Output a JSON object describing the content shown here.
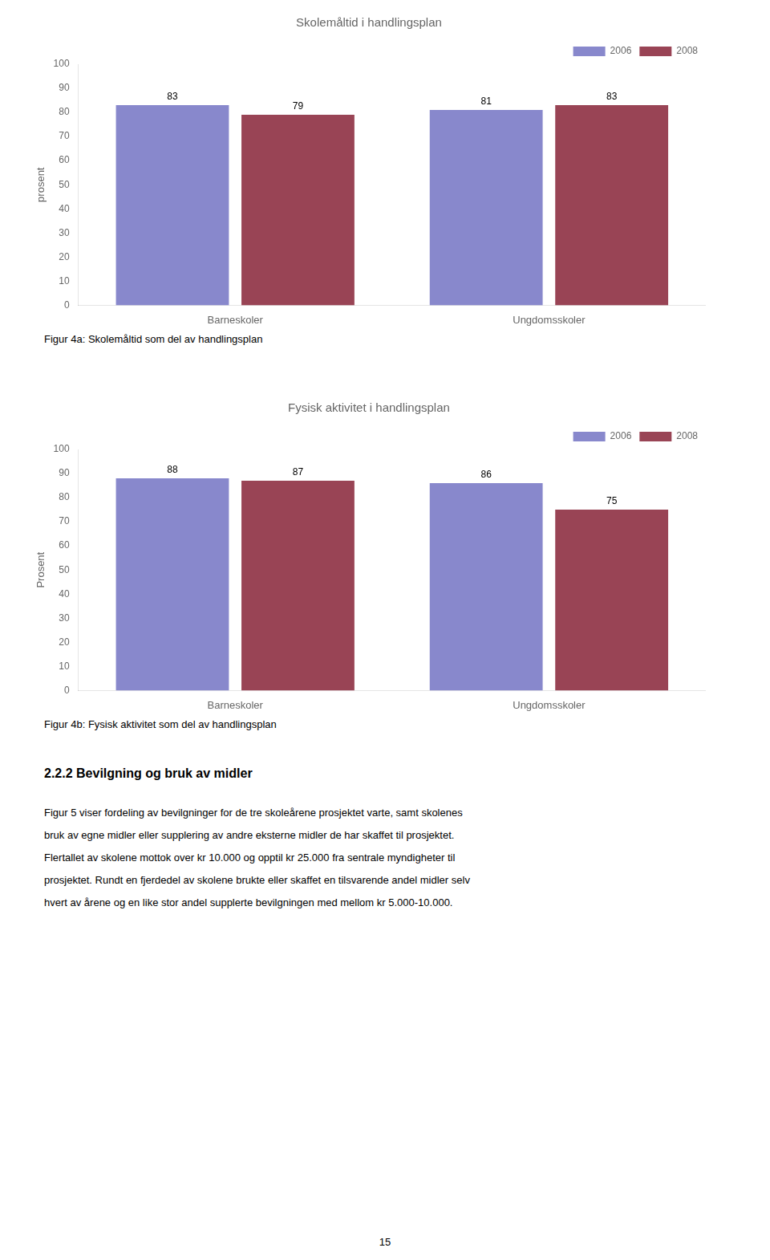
{
  "chart_data": [
    {
      "type": "bar",
      "title": "Skolemåltid i handlingsplan",
      "categories": [
        "Barneskoler",
        "Ungdomsskoler"
      ],
      "series": [
        {
          "name": "2006",
          "color": "#8888cc",
          "values": [
            83,
            81
          ]
        },
        {
          "name": "2008",
          "color": "#994455",
          "values": [
            79,
            83
          ]
        }
      ],
      "ylabel": "prosent",
      "ylim": [
        0,
        100
      ],
      "yticks": [
        0,
        10,
        20,
        30,
        40,
        50,
        60,
        70,
        80,
        90,
        100
      ],
      "grid": false,
      "legend": "upper right",
      "data_labels": true,
      "caption": "Figur 4a: Skolemåltid som del av handlingsplan"
    },
    {
      "type": "bar",
      "title": "Fysisk aktivitet i handlingsplan",
      "categories": [
        "Barneskoler",
        "Ungdomsskoler"
      ],
      "series": [
        {
          "name": "2006",
          "color": "#8888cc",
          "values": [
            88,
            86
          ]
        },
        {
          "name": "2008",
          "color": "#994455",
          "values": [
            87,
            75
          ]
        }
      ],
      "ylabel": "Prosent",
      "ylim": [
        0,
        100
      ],
      "yticks": [
        0,
        10,
        20,
        30,
        40,
        50,
        60,
        70,
        80,
        90,
        100
      ],
      "grid": false,
      "legend": "upper right",
      "data_labels": true,
      "caption": "Figur 4b: Fysisk aktivitet som del av handlingsplan"
    }
  ],
  "section_title": "2.2.2 Bevilgning og bruk av midler",
  "section_lines": [
    "Figur 5 viser fordeling av bevilgninger for de tre skoleårene prosjektet varte, samt skolenes",
    "bruk av egne midler eller supplering av andre eksterne midler de har skaffet til prosjektet.",
    "Flertallet av skolene mottok over kr 10.000 og opptil kr 25.000 fra sentrale myndigheter til",
    "prosjektet. Rundt en fjerdedel av skolene brukte eller skaffet en tilsvarende andel midler selv",
    "hvert av årene og en like stor andel supplerte bevilgningen med mellom kr 5.000-10.000."
  ],
  "page_number": "15"
}
